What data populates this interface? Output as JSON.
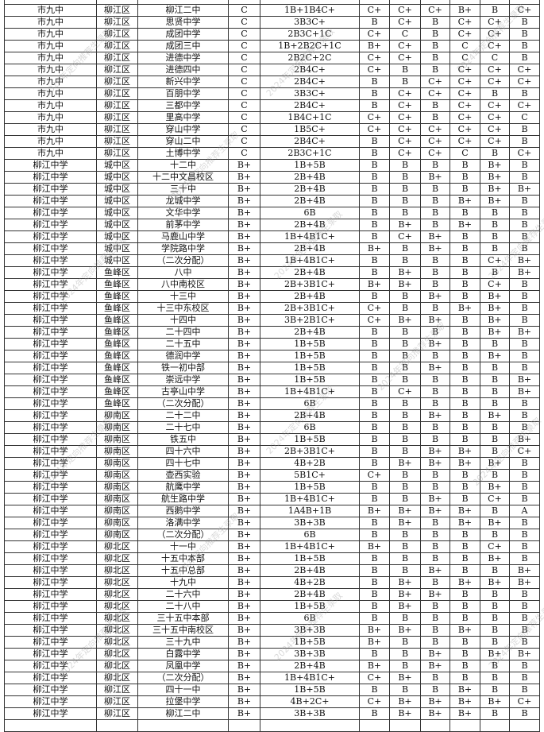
{
  "watermark": "2024年定向推荐生录取",
  "rows": [
    [
      "",
      "",
      "",
      "",
      "",
      "",
      "",
      "",
      "",
      "",
      ""
    ],
    [
      "市九中",
      "柳江区",
      "柳江二中",
      "C",
      "1B+1B4C+",
      "C+",
      "C+",
      "C+",
      "B+",
      "B",
      "C+"
    ],
    [
      "市九中",
      "柳江区",
      "思贤中学",
      "C",
      "3B3C+",
      "B",
      "C+",
      "B",
      "C+",
      "C+",
      "B"
    ],
    [
      "市九中",
      "柳江区",
      "成团中学",
      "C",
      "2B3C+1C",
      "C+",
      "C",
      "B",
      "C+",
      "C+",
      "B"
    ],
    [
      "市九中",
      "柳江区",
      "成团三中",
      "C",
      "1B+2B2C+1C",
      "B+",
      "C+",
      "B",
      "C",
      "C+",
      "B"
    ],
    [
      "市九中",
      "柳江区",
      "进德中学",
      "C",
      "2B2C+2C",
      "C+",
      "C+",
      "B",
      "C",
      "C",
      "B"
    ],
    [
      "市九中",
      "柳江区",
      "进德四中",
      "C",
      "2B4C+",
      "C+",
      "B",
      "B",
      "C+",
      "C+",
      "C+"
    ],
    [
      "市九中",
      "柳江区",
      "新兴中学",
      "C",
      "2B4C+",
      "B",
      "B",
      "C+",
      "C+",
      "C+",
      "C+"
    ],
    [
      "市九中",
      "柳江区",
      "百朋中学",
      "C",
      "3B3C+",
      "B",
      "C+",
      "C+",
      "C+",
      "B",
      "B"
    ],
    [
      "市九中",
      "柳江区",
      "三都中学",
      "C",
      "2B4C+",
      "B",
      "C+",
      "B",
      "C+",
      "C+",
      "C+"
    ],
    [
      "市九中",
      "柳江区",
      "里高中学",
      "C",
      "1B4C+1C",
      "C+",
      "C+",
      "B",
      "C+",
      "C+",
      "C"
    ],
    [
      "市九中",
      "柳江区",
      "穿山中学",
      "C",
      "1B5C+",
      "C+",
      "C+",
      "C+",
      "C+",
      "C+",
      "B"
    ],
    [
      "市九中",
      "柳江区",
      "穿山二中",
      "C",
      "2B4C+",
      "B",
      "C+",
      "C+",
      "C+",
      "C+",
      "B"
    ],
    [
      "市九中",
      "柳江区",
      "土博中学",
      "C",
      "2B3C+1C",
      "B",
      "C+",
      "C+",
      "C",
      "B",
      "C+"
    ],
    [
      "柳江中学",
      "城中区",
      "十二中",
      "B+",
      "1B+5B",
      "B",
      "B",
      "B",
      "B",
      "B+",
      "B"
    ],
    [
      "柳江中学",
      "城中区",
      "十二中文昌校区",
      "B+",
      "2B+4B",
      "B",
      "B",
      "B+",
      "B",
      "B+",
      "B"
    ],
    [
      "柳江中学",
      "城中区",
      "三十中",
      "B+",
      "2B+4B",
      "B",
      "B",
      "B",
      "B",
      "B+",
      "B+"
    ],
    [
      "柳江中学",
      "城中区",
      "龙城中学",
      "B+",
      "2B+4B",
      "B",
      "B",
      "B",
      "B+",
      "B+",
      "B"
    ],
    [
      "柳江中学",
      "城中区",
      "文华中学",
      "B+",
      "6B",
      "B",
      "B",
      "B",
      "B",
      "B",
      "B"
    ],
    [
      "柳江中学",
      "城中区",
      "前茅中学",
      "B+",
      "2B+4B",
      "B",
      "B+",
      "B",
      "B+",
      "B",
      "B"
    ],
    [
      "柳江中学",
      "城中区",
      "马鹿山中学",
      "B+",
      "1B+4B1C+",
      "B",
      "C+",
      "B+",
      "B",
      "B",
      "B"
    ],
    [
      "柳江中学",
      "城中区",
      "学院路中学",
      "B+",
      "2B+4B",
      "B+",
      "B",
      "B+",
      "B",
      "B",
      "B"
    ],
    [
      "柳江中学",
      "城中区",
      "（二次分配）",
      "B+",
      "1B+4B1C+",
      "B",
      "B",
      "B",
      "B",
      "C+",
      "B+"
    ],
    [
      "柳江中学",
      "鱼峰区",
      "八中",
      "B+",
      "2B+4B",
      "B",
      "B+",
      "B",
      "B",
      "B",
      "B+"
    ],
    [
      "柳江中学",
      "鱼峰区",
      "八中南校区",
      "B+",
      "2B+3B1C+",
      "B+",
      "B+",
      "B",
      "B",
      "C+",
      "B"
    ],
    [
      "柳江中学",
      "鱼峰区",
      "十三中",
      "B+",
      "2B+4B",
      "B",
      "B",
      "B+",
      "B",
      "B+",
      "B"
    ],
    [
      "柳江中学",
      "鱼峰区",
      "十三中东校区",
      "B+",
      "2B+3B1C+",
      "C+",
      "B",
      "B",
      "B+",
      "B+",
      "B"
    ],
    [
      "柳江中学",
      "鱼峰区",
      "十四中",
      "B+",
      "3B+2B1C+",
      "C+",
      "B+",
      "B+",
      "B",
      "B+",
      "B"
    ],
    [
      "柳江中学",
      "鱼峰区",
      "二十四中",
      "B+",
      "2B+4B",
      "B",
      "B",
      "B",
      "B",
      "B+",
      "B+"
    ],
    [
      "柳江中学",
      "鱼峰区",
      "二十五中",
      "B+",
      "1B+5B",
      "B",
      "B",
      "B+",
      "B",
      "B",
      "B"
    ],
    [
      "柳江中学",
      "鱼峰区",
      "德润中学",
      "B+",
      "1B+5B",
      "B",
      "B",
      "B",
      "B",
      "B+",
      "B"
    ],
    [
      "柳江中学",
      "鱼峰区",
      "铁一初中部",
      "B+",
      "1B+5B",
      "B",
      "B",
      "B+",
      "B",
      "B",
      "B"
    ],
    [
      "柳江中学",
      "鱼峰区",
      "崇远中学",
      "B+",
      "1B+5B",
      "B",
      "B",
      "B",
      "B",
      "B",
      "B+"
    ],
    [
      "柳江中学",
      "鱼峰区",
      "古亭山中学",
      "B+",
      "1B+4B1C+",
      "B",
      "C+",
      "B",
      "B",
      "B",
      "B+"
    ],
    [
      "柳江中学",
      "鱼峰区",
      "（二次分配）",
      "B+",
      "6B",
      "B",
      "B",
      "B",
      "B",
      "B",
      "B"
    ],
    [
      "柳江中学",
      "柳南区",
      "二十二中",
      "B+",
      "2B+4B",
      "B",
      "B",
      "B+",
      "B",
      "B+",
      "B"
    ],
    [
      "柳江中学",
      "柳南区",
      "二十七中",
      "B+",
      "6B",
      "B",
      "B",
      "B",
      "B",
      "B",
      "B"
    ],
    [
      "柳江中学",
      "柳南区",
      "铁五中",
      "B+",
      "1B+5B",
      "B",
      "B",
      "B",
      "B",
      "B",
      "B+"
    ],
    [
      "柳江中学",
      "柳南区",
      "四十六中",
      "B+",
      "2B+3B1C+",
      "B",
      "B",
      "B+",
      "B+",
      "B",
      "C+"
    ],
    [
      "柳江中学",
      "柳南区",
      "四十七中",
      "B+",
      "4B+2B",
      "B",
      "B+",
      "B+",
      "B+",
      "B+",
      "B"
    ],
    [
      "柳江中学",
      "柳南区",
      "壶西实验",
      "B+",
      "5B1C+",
      "C+",
      "B",
      "B",
      "B",
      "B",
      "B"
    ],
    [
      "柳江中学",
      "柳南区",
      "航鹰中学",
      "B+",
      "1B+5B",
      "B",
      "B",
      "B",
      "B",
      "B+",
      "B"
    ],
    [
      "柳江中学",
      "柳南区",
      "航生路中学",
      "B+",
      "1B+4B1C+",
      "B",
      "B",
      "B+",
      "B",
      "C+",
      "B"
    ],
    [
      "柳江中学",
      "柳南区",
      "西鹅中学",
      "B+",
      "1A4B+1B",
      "B+",
      "B+",
      "B+",
      "B+",
      "B",
      "A"
    ],
    [
      "柳江中学",
      "柳南区",
      "洛满中学",
      "B+",
      "3B+3B",
      "B",
      "B+",
      "B",
      "B+",
      "B+",
      "B"
    ],
    [
      "柳江中学",
      "柳南区",
      "（二次分配）",
      "B+",
      "6B",
      "B",
      "B",
      "B",
      "B",
      "B",
      "B"
    ],
    [
      "柳江中学",
      "柳北区",
      "十一中",
      "B+",
      "1B+4B1C+",
      "B+",
      "B",
      "B",
      "B",
      "C+",
      "B"
    ],
    [
      "柳江中学",
      "柳北区",
      "十五中本部",
      "B+",
      "1B+5B",
      "B",
      "B",
      "B",
      "B",
      "B+",
      "B"
    ],
    [
      "柳江中学",
      "柳北区",
      "十五中总部",
      "B+",
      "2B+4B",
      "B",
      "B",
      "B+",
      "B",
      "B",
      "B+"
    ],
    [
      "柳江中学",
      "柳北区",
      "十九中",
      "B+",
      "4B+2B",
      "B",
      "B+",
      "B",
      "B+",
      "B+",
      "B+"
    ],
    [
      "柳江中学",
      "柳北区",
      "二十六中",
      "B+",
      "2B+4B",
      "B",
      "B+",
      "B+",
      "B",
      "B",
      "B"
    ],
    [
      "柳江中学",
      "柳北区",
      "二十八中",
      "B+",
      "1B+5B",
      "B",
      "B+",
      "B",
      "B",
      "B",
      "B"
    ],
    [
      "柳江中学",
      "柳北区",
      "三十五中本部",
      "B+",
      "6B",
      "B",
      "B",
      "B",
      "B",
      "B",
      "B"
    ],
    [
      "柳江中学",
      "柳北区",
      "三十五中南校区",
      "B+",
      "3B+3B",
      "B+",
      "B+",
      "B",
      "B+",
      "B",
      "B"
    ],
    [
      "柳江中学",
      "柳北区",
      "三十九中",
      "B+",
      "1B+5B",
      "B+",
      "B",
      "B",
      "B",
      "B",
      "B"
    ],
    [
      "柳江中学",
      "柳北区",
      "白露中学",
      "B+",
      "3B+3B",
      "B",
      "B",
      "B+",
      "B",
      "B+",
      "B+"
    ],
    [
      "柳江中学",
      "柳北区",
      "凤凰中学",
      "B+",
      "2B+4B",
      "B+",
      "B",
      "B+",
      "B",
      "B",
      "B"
    ],
    [
      "柳江中学",
      "柳北区",
      "（二次分配）",
      "B+",
      "1B+4B1C+",
      "C+",
      "B+",
      "B",
      "B",
      "B",
      "B"
    ],
    [
      "柳江中学",
      "柳江区",
      "四十一中",
      "B+",
      "1B+5B",
      "B",
      "B",
      "B",
      "B+",
      "B",
      "B"
    ],
    [
      "柳江中学",
      "柳江区",
      "拉堡中学",
      "B+",
      "4B+2C+",
      "C+",
      "B+",
      "B+",
      "B+",
      "B+",
      "C+"
    ],
    [
      "柳江中学",
      "柳江区",
      "柳江二中",
      "B+",
      "3B+3B",
      "B",
      "B+",
      "B+",
      "B+",
      "B",
      "B"
    ],
    [
      "",
      "",
      "",
      "",
      "",
      "",
      "",
      "",
      "",
      "",
      ""
    ]
  ]
}
